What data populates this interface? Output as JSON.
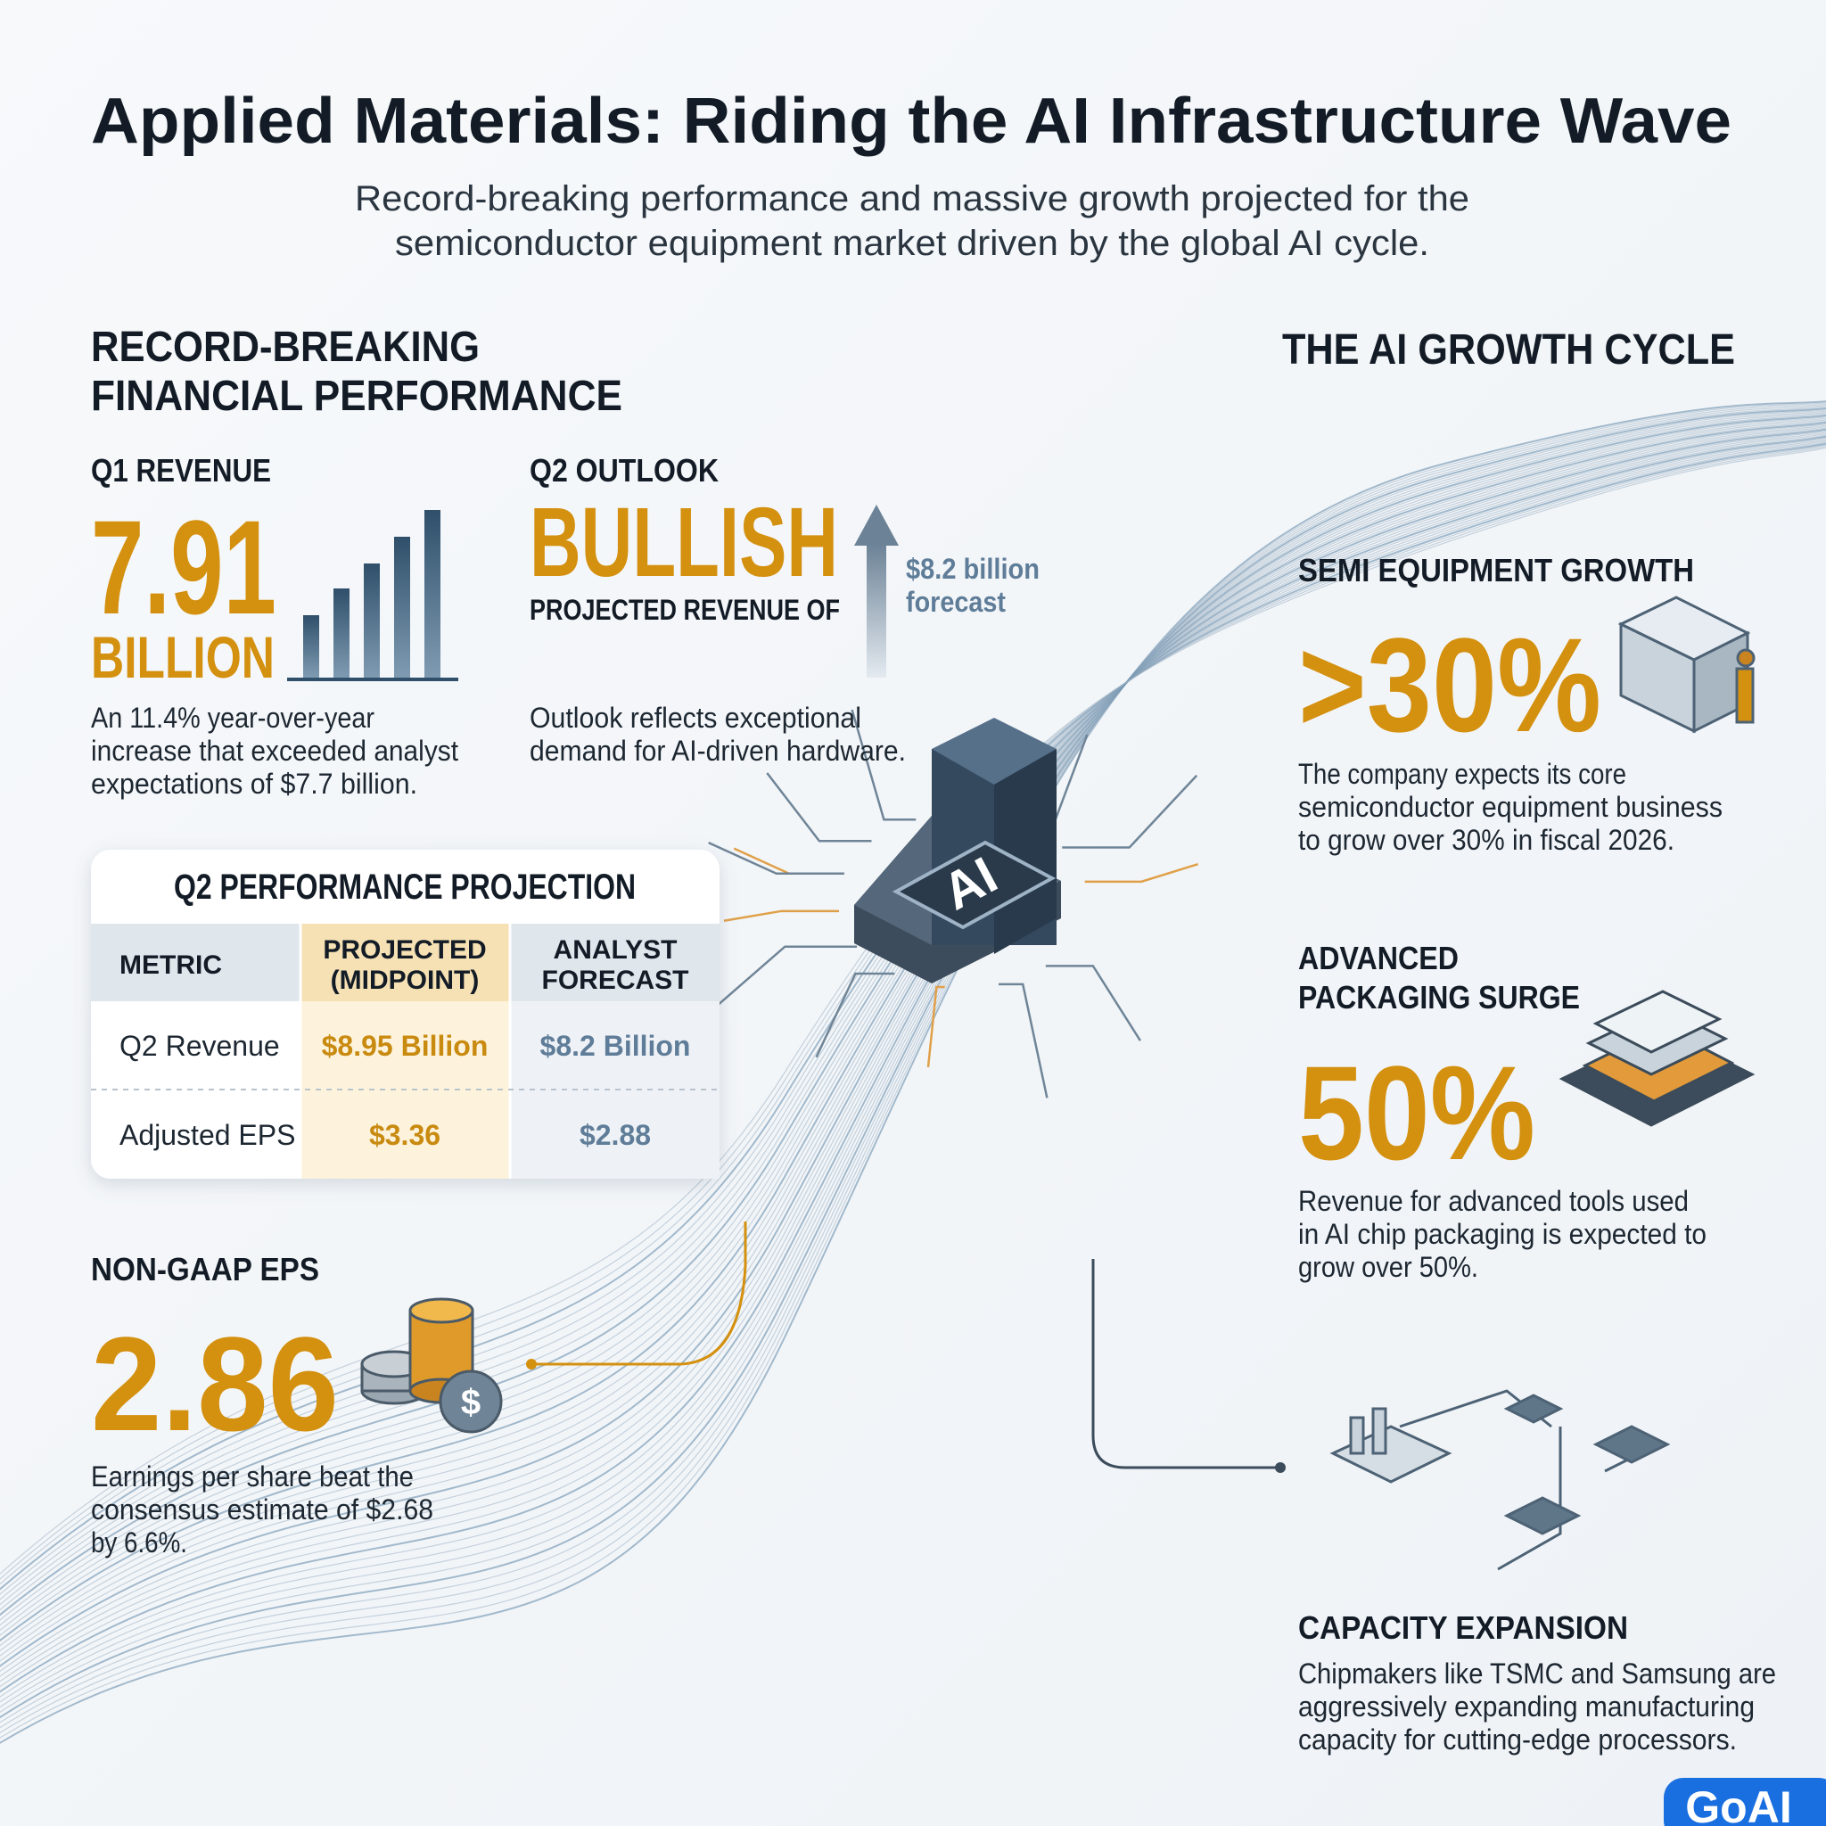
{
  "header": {
    "title": "Applied Materials: Riding the AI Infrastructure Wave",
    "subtitle": [
      "Record-breaking performance and massive growth projected for the",
      "semiconductor equipment market driven by the global AI cycle."
    ]
  },
  "left": {
    "heading": [
      "RECORD-BREAKING",
      "FINANCIAL PERFORMANCE"
    ],
    "q1": {
      "label": "Q1 REVENUE",
      "value": "7.91",
      "unit": "BILLION",
      "description": [
        "An 11.4% year-over-year",
        "increase that exceeded analyst",
        "expectations of $7.7 billion."
      ]
    },
    "q2": {
      "label": "Q2 OUTLOOK",
      "value": "BULLISH",
      "sub": "PROJECTED REVENUE OF",
      "forecast": [
        "$8.2 billion",
        "forecast"
      ],
      "description": [
        "Outlook reflects exceptional",
        "demand for AI-driven hardware."
      ]
    },
    "table": {
      "title": "Q2 PERFORMANCE PROJECTION",
      "columns": [
        [
          "METRIC"
        ],
        [
          "PROJECTED",
          "(MIDPOINT)"
        ],
        [
          "ANALYST",
          "FORECAST"
        ]
      ],
      "rows": [
        [
          "Q2 Revenue",
          "$8.95 Billion",
          "$8.2 Billion"
        ],
        [
          "Adjusted EPS",
          "$3.36",
          "$2.88"
        ]
      ]
    },
    "eps": {
      "label": "NON-GAAP EPS",
      "value": "2.86",
      "description": [
        "Earnings per share beat the",
        "consensus estimate of $2.68",
        "by 6.6%."
      ]
    }
  },
  "chip_label": "AI",
  "right": {
    "heading": "THE AI GROWTH CYCLE",
    "semi": {
      "label": "SEMI EQUIPMENT GROWTH",
      "value": ">30%",
      "description": [
        "The company expects its core",
        "semiconductor equipment business",
        "to grow over 30% in fiscal 2026."
      ]
    },
    "packaging": {
      "label": [
        "ADVANCED",
        "PACKAGING SURGE"
      ],
      "value": "50%",
      "description": [
        "Revenue for advanced tools used",
        "in AI chip packaging is expected to",
        "grow over 50%."
      ]
    },
    "capacity": {
      "label": "CAPACITY EXPANSION",
      "description": [
        "Chipmakers like TSMC and Samsung are",
        "aggressively expanding manufacturing",
        "capacity for cutting-edge processors."
      ]
    }
  },
  "logo": "GoAI"
}
